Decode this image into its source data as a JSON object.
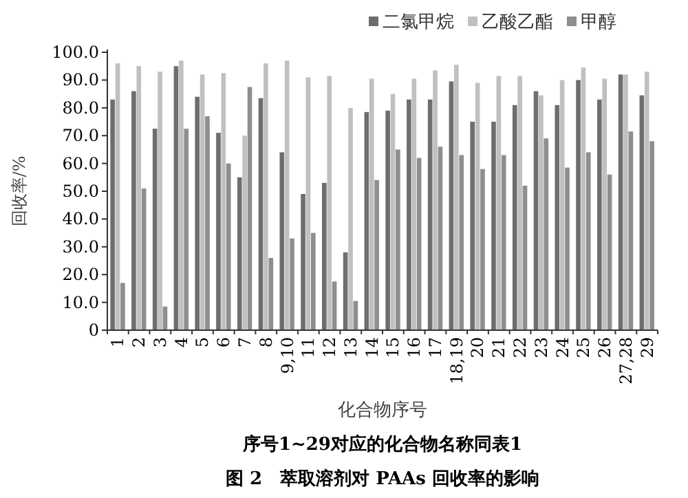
{
  "chart_data": {
    "type": "bar",
    "title": "图 2　萃取溶剂对 PAAs 回收率的影响",
    "xlabel": "化合物序号",
    "ylabel": "回收率/%",
    "annotations": [
      "序号1~29对应的化合物名称同表1"
    ],
    "categories": [
      "1",
      "2",
      "3",
      "4",
      "5",
      "6",
      "7",
      "8",
      "9,10",
      "11",
      "12",
      "13",
      "14",
      "15",
      "16",
      "17",
      "18,19",
      "20",
      "21",
      "22",
      "23",
      "24",
      "25",
      "26",
      "27,28",
      "29"
    ],
    "series": [
      {
        "name": "二氯甲烷",
        "color": "#6e6e6e",
        "values": [
          83,
          86,
          72.5,
          95,
          84,
          71,
          55,
          83.5,
          64,
          49,
          53,
          28,
          78.5,
          79,
          83,
          83,
          89.5,
          75,
          75,
          81,
          86,
          81,
          90,
          83,
          92,
          84.5
        ]
      },
      {
        "name": "乙酸乙酯",
        "color": "#c0c0c0",
        "values": [
          96,
          95,
          93,
          97,
          92,
          92.5,
          70,
          96,
          97,
          91,
          91.5,
          80,
          90.5,
          85,
          90.5,
          93.5,
          95.5,
          89,
          91.5,
          91.5,
          84.5,
          90,
          94.5,
          90.5,
          92,
          93
        ]
      },
      {
        "name": "甲醇",
        "color": "#8e8e8e",
        "values": [
          17,
          51,
          8.5,
          72.5,
          77,
          60,
          87.5,
          26,
          33,
          35,
          17.5,
          10.5,
          54,
          65,
          62,
          66,
          63,
          58,
          63,
          52,
          69,
          58.5,
          64,
          56,
          71.5,
          68
        ]
      }
    ],
    "ylim": [
      0,
      100
    ],
    "yticks": [
      0,
      {
        "value": 10,
        "label": "10.0"
      },
      {
        "value": 20,
        "label": "20.0"
      },
      {
        "value": 30,
        "label": "30.0"
      },
      {
        "value": 40,
        "label": "40.0"
      },
      {
        "value": 50,
        "label": "50.0"
      },
      {
        "value": 60,
        "label": "60.0"
      },
      {
        "value": 70,
        "label": "70.0"
      },
      {
        "value": 80,
        "label": "80.0"
      },
      {
        "value": 90,
        "label": "90.0"
      },
      {
        "value": 100,
        "label": "100.0"
      }
    ],
    "grid": false,
    "legend": "top right"
  }
}
